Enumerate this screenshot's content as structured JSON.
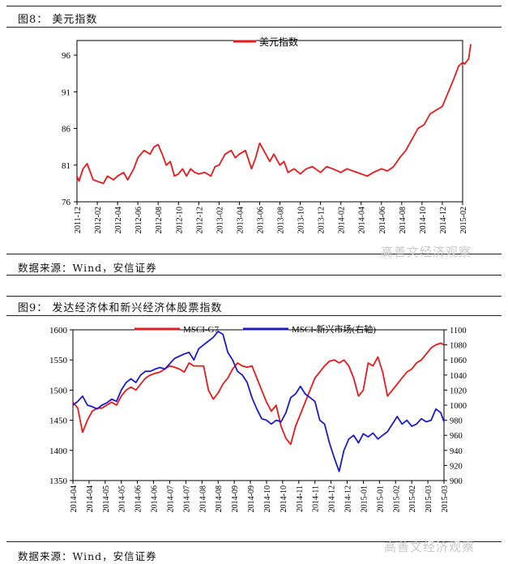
{
  "figure1": {
    "caption": "图8： 美元指数",
    "source": "数据来源：Wind，安信证券",
    "watermark": "高善文经济观察"
  },
  "figure2": {
    "caption": "图9： 发达经济体和新兴经济体股票指数",
    "source": "数据来源：Wind，安信证券",
    "watermark": "高善文经济观察"
  },
  "colors": {
    "red": "#e8191c",
    "blue": "#1a1acc",
    "axis": "#000000"
  },
  "chart_data": [
    {
      "type": "line",
      "title": "",
      "x_tick_labels": [
        "2011-12",
        "2012-02",
        "2012-04",
        "2012-06",
        "2012-08",
        "2012-10",
        "2012-12",
        "2013-02",
        "2013-04",
        "2013-06",
        "2013-08",
        "2013-10",
        "2013-12",
        "2014-02",
        "2014-04",
        "2014-06",
        "2014-08",
        "2014-10",
        "2014-12",
        "2015-02"
      ],
      "ylim": [
        76,
        98
      ],
      "y_ticks": [
        76,
        81,
        86,
        91,
        96
      ],
      "legend": "top-center",
      "series": [
        {
          "name": "美元指数",
          "color": "#e8191c",
          "x": [
            0,
            0.1,
            0.3,
            0.5,
            0.8,
            1.0,
            1.3,
            1.5,
            1.8,
            2.0,
            2.3,
            2.5,
            2.8,
            3.0,
            3.3,
            3.6,
            3.8,
            4.0,
            4.2,
            4.4,
            4.6,
            4.8,
            5.0,
            5.2,
            5.4,
            5.6,
            5.8,
            6.0,
            6.3,
            6.6,
            6.8,
            7.0,
            7.3,
            7.6,
            7.8,
            8.0,
            8.3,
            8.6,
            8.8,
            9.0,
            9.3,
            9.5,
            9.7,
            10.0,
            10.2,
            10.4,
            10.7,
            11.0,
            11.3,
            11.6,
            12.0,
            12.3,
            12.6,
            13.0,
            13.3,
            13.6,
            14.0,
            14.3,
            14.6,
            15.0,
            15.3,
            15.6,
            15.9,
            16.2,
            16.5,
            16.8,
            17.1,
            17.4,
            17.7,
            18.0,
            18.3,
            18.6,
            18.8,
            19.0,
            19.1,
            19.3,
            19.4
          ],
          "y": [
            79.5,
            78.8,
            80.5,
            81.2,
            79.0,
            78.8,
            78.5,
            79.5,
            79.0,
            79.5,
            80.0,
            79.0,
            80.5,
            82.0,
            83.0,
            82.5,
            83.5,
            83.8,
            82.5,
            81.0,
            81.5,
            79.5,
            79.8,
            80.5,
            79.5,
            80.5,
            80.0,
            79.8,
            80.0,
            79.5,
            80.8,
            81.0,
            82.5,
            83.0,
            82.0,
            82.5,
            83.0,
            80.5,
            82.0,
            84.0,
            82.5,
            81.5,
            82.5,
            81.0,
            81.5,
            80.0,
            80.5,
            79.8,
            80.5,
            80.8,
            80.0,
            80.8,
            80.5,
            80.0,
            80.5,
            80.2,
            79.8,
            79.5,
            80.0,
            80.5,
            80.2,
            80.8,
            82.0,
            83.0,
            84.5,
            86.0,
            86.5,
            88.0,
            88.5,
            89.0,
            91.0,
            93.0,
            94.5,
            95.0,
            94.8,
            95.5,
            97.5
          ]
        }
      ]
    },
    {
      "type": "line",
      "title": "",
      "x_tick_labels": [
        "2014-04",
        "2014-04",
        "2014-05",
        "2014-05",
        "2014-06",
        "2014-06",
        "2014-07",
        "2014-07",
        "2014-08",
        "2014-08",
        "2014-09",
        "2014-09",
        "2014-10",
        "2014-10",
        "2014-11",
        "2014-11",
        "2014-12",
        "2014-12",
        "2015-01",
        "2015-01",
        "2015-02",
        "2015-02",
        "2015-03",
        "2015-03"
      ],
      "ylim_left": [
        1350,
        1600
      ],
      "y_ticks_left": [
        1350,
        1400,
        1450,
        1500,
        1550,
        1600
      ],
      "ylim_right": [
        900,
        1100
      ],
      "y_ticks_right": [
        900,
        920,
        940,
        960,
        980,
        1000,
        1020,
        1040,
        1060,
        1080,
        1100
      ],
      "legend": "top",
      "series": [
        {
          "name": "MSCI-G7",
          "axis": "left",
          "color": "#e8191c",
          "x": [
            0,
            0.3,
            0.6,
            0.9,
            1.2,
            1.5,
            1.8,
            2.1,
            2.4,
            2.7,
            3.0,
            3.3,
            3.6,
            3.9,
            4.2,
            4.5,
            4.8,
            5.1,
            5.4,
            5.7,
            6.0,
            6.3,
            6.6,
            6.9,
            7.2,
            7.5,
            7.8,
            8.1,
            8.4,
            8.7,
            9.0,
            9.3,
            9.6,
            9.9,
            10.2,
            10.5,
            10.8,
            11.1,
            11.4,
            11.7,
            12.0,
            12.3,
            12.6,
            12.9,
            13.2,
            13.5,
            13.8,
            14.1,
            14.4,
            14.7,
            15.0,
            15.3,
            15.6,
            15.9,
            16.2,
            16.5,
            16.8,
            17.1,
            17.4,
            17.7,
            18.0,
            18.3,
            18.6,
            18.9,
            19.2,
            19.5,
            19.8,
            20.1,
            20.4,
            20.7,
            21.0,
            21.3,
            21.6,
            21.9,
            22.2,
            22.5,
            22.8,
            23.0
          ],
          "y": [
            1480,
            1470,
            1430,
            1450,
            1465,
            1470,
            1470,
            1475,
            1480,
            1475,
            1490,
            1500,
            1505,
            1500,
            1510,
            1520,
            1525,
            1528,
            1530,
            1535,
            1540,
            1538,
            1535,
            1530,
            1545,
            1540,
            1540,
            1540,
            1500,
            1485,
            1495,
            1510,
            1520,
            1535,
            1545,
            1540,
            1538,
            1540,
            1520,
            1500,
            1480,
            1465,
            1475,
            1440,
            1420,
            1410,
            1440,
            1460,
            1480,
            1500,
            1520,
            1530,
            1540,
            1548,
            1550,
            1545,
            1550,
            1540,
            1520,
            1490,
            1500,
            1545,
            1540,
            1555,
            1530,
            1490,
            1500,
            1510,
            1520,
            1530,
            1535,
            1545,
            1550,
            1560,
            1570,
            1575,
            1578,
            1575
          ]
        },
        {
          "name": "MSCI-新兴市场(右轴)",
          "axis": "right",
          "color": "#1a1acc",
          "x": [
            0,
            0.3,
            0.6,
            0.9,
            1.2,
            1.5,
            1.8,
            2.1,
            2.4,
            2.7,
            3.0,
            3.3,
            3.6,
            3.9,
            4.2,
            4.5,
            4.8,
            5.1,
            5.4,
            5.7,
            6.0,
            6.3,
            6.6,
            6.9,
            7.2,
            7.5,
            7.8,
            8.1,
            8.4,
            8.7,
            9.0,
            9.3,
            9.6,
            9.9,
            10.2,
            10.5,
            10.8,
            11.1,
            11.4,
            11.7,
            12.0,
            12.3,
            12.6,
            12.9,
            13.2,
            13.5,
            13.8,
            14.1,
            14.4,
            14.7,
            15.0,
            15.3,
            15.6,
            15.9,
            16.2,
            16.5,
            16.8,
            17.1,
            17.4,
            17.7,
            18.0,
            18.3,
            18.6,
            18.9,
            19.2,
            19.5,
            19.8,
            20.1,
            20.4,
            20.7,
            21.0,
            21.3,
            21.6,
            21.9,
            22.2,
            22.5,
            22.8,
            23.0
          ],
          "y": [
            1000,
            1005,
            1012,
            1000,
            998,
            995,
            1000,
            1003,
            1008,
            1005,
            1020,
            1030,
            1035,
            1030,
            1040,
            1045,
            1045,
            1048,
            1050,
            1048,
            1055,
            1062,
            1065,
            1068,
            1070,
            1060,
            1075,
            1080,
            1085,
            1090,
            1098,
            1094,
            1070,
            1060,
            1045,
            1040,
            1030,
            1010,
            995,
            982,
            980,
            975,
            980,
            978,
            990,
            1010,
            1015,
            1025,
            1015,
            1010,
            1005,
            980,
            975,
            950,
            930,
            912,
            940,
            955,
            960,
            950,
            962,
            958,
            963,
            955,
            960,
            965,
            975,
            985,
            975,
            980,
            972,
            975,
            982,
            978,
            980,
            995,
            990,
            978
          ]
        }
      ]
    }
  ]
}
